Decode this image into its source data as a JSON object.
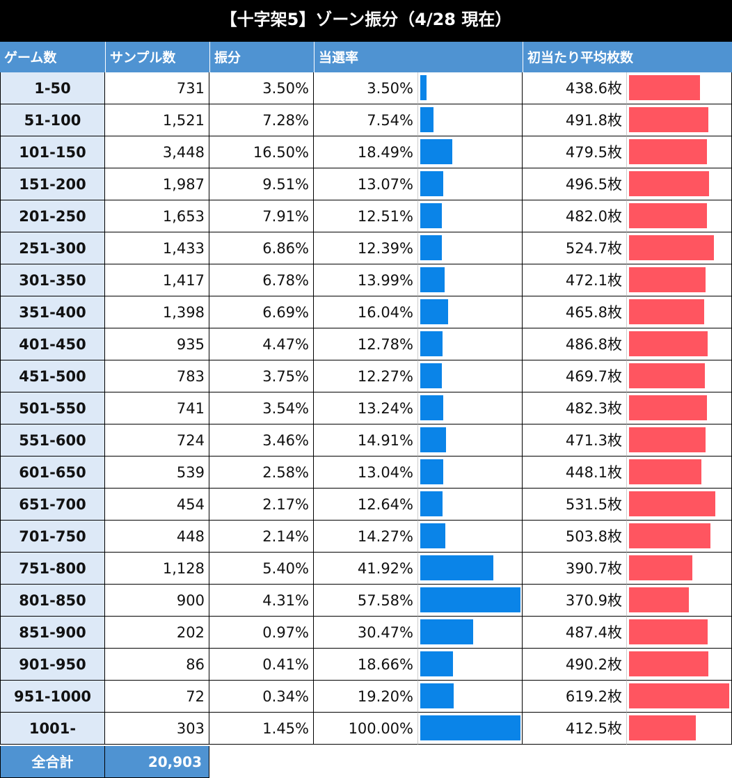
{
  "title": "【十字架5】ゾーン振分（4/28 現在）",
  "colors": {
    "header_bg": "#4f93d2",
    "zone_bg": "#dde9f7",
    "rate_bar": "#0a84e8",
    "medal_bar": "#ff5560"
  },
  "headers": {
    "zone": "ゲーム数",
    "samples": "サンプル数",
    "distribution": "振分",
    "hit_rate": "当選率",
    "avg_medals": "初当たり平均枚数"
  },
  "chart_data": {
    "type": "table",
    "rows": [
      {
        "zone": "1-50",
        "samples": "731",
        "distribution": "3.50%",
        "hit_rate": "3.50%",
        "avg_medals": "438.6枚"
      },
      {
        "zone": "51-100",
        "samples": "1,521",
        "distribution": "7.28%",
        "hit_rate": "7.54%",
        "avg_medals": "491.8枚"
      },
      {
        "zone": "101-150",
        "samples": "3,448",
        "distribution": "16.50%",
        "hit_rate": "18.49%",
        "avg_medals": "479.5枚"
      },
      {
        "zone": "151-200",
        "samples": "1,987",
        "distribution": "9.51%",
        "hit_rate": "13.07%",
        "avg_medals": "496.5枚"
      },
      {
        "zone": "201-250",
        "samples": "1,653",
        "distribution": "7.91%",
        "hit_rate": "12.51%",
        "avg_medals": "482.0枚"
      },
      {
        "zone": "251-300",
        "samples": "1,433",
        "distribution": "6.86%",
        "hit_rate": "12.39%",
        "avg_medals": "524.7枚"
      },
      {
        "zone": "301-350",
        "samples": "1,417",
        "distribution": "6.78%",
        "hit_rate": "13.99%",
        "avg_medals": "472.1枚"
      },
      {
        "zone": "351-400",
        "samples": "1,398",
        "distribution": "6.69%",
        "hit_rate": "16.04%",
        "avg_medals": "465.8枚"
      },
      {
        "zone": "401-450",
        "samples": "935",
        "distribution": "4.47%",
        "hit_rate": "12.78%",
        "avg_medals": "486.8枚"
      },
      {
        "zone": "451-500",
        "samples": "783",
        "distribution": "3.75%",
        "hit_rate": "12.27%",
        "avg_medals": "469.7枚"
      },
      {
        "zone": "501-550",
        "samples": "741",
        "distribution": "3.54%",
        "hit_rate": "13.24%",
        "avg_medals": "482.3枚"
      },
      {
        "zone": "551-600",
        "samples": "724",
        "distribution": "3.46%",
        "hit_rate": "14.91%",
        "avg_medals": "471.3枚"
      },
      {
        "zone": "601-650",
        "samples": "539",
        "distribution": "2.58%",
        "hit_rate": "13.04%",
        "avg_medals": "448.1枚"
      },
      {
        "zone": "651-700",
        "samples": "454",
        "distribution": "2.17%",
        "hit_rate": "12.64%",
        "avg_medals": "531.5枚"
      },
      {
        "zone": "701-750",
        "samples": "448",
        "distribution": "2.14%",
        "hit_rate": "14.27%",
        "avg_medals": "503.8枚"
      },
      {
        "zone": "751-800",
        "samples": "1,128",
        "distribution": "5.40%",
        "hit_rate": "41.92%",
        "avg_medals": "390.7枚"
      },
      {
        "zone": "801-850",
        "samples": "900",
        "distribution": "4.31%",
        "hit_rate": "57.58%",
        "avg_medals": "370.9枚"
      },
      {
        "zone": "851-900",
        "samples": "202",
        "distribution": "0.97%",
        "hit_rate": "30.47%",
        "avg_medals": "487.4枚"
      },
      {
        "zone": "901-950",
        "samples": "86",
        "distribution": "0.41%",
        "hit_rate": "18.66%",
        "avg_medals": "490.2枚"
      },
      {
        "zone": "951-1000",
        "samples": "72",
        "distribution": "0.34%",
        "hit_rate": "19.20%",
        "avg_medals": "619.2枚"
      },
      {
        "zone": "1001-",
        "samples": "303",
        "distribution": "1.45%",
        "hit_rate": "100.00%",
        "avg_medals": "412.5枚"
      }
    ],
    "hit_rate_values": [
      3.5,
      7.54,
      18.49,
      13.07,
      12.51,
      12.39,
      13.99,
      16.04,
      12.78,
      12.27,
      13.24,
      14.91,
      13.04,
      12.64,
      14.27,
      41.92,
      57.58,
      30.47,
      18.66,
      19.2,
      100.0
    ],
    "hit_rate_bar_max": 57.58,
    "avg_medal_values": [
      438.6,
      491.8,
      479.5,
      496.5,
      482.0,
      524.7,
      472.1,
      465.8,
      486.8,
      469.7,
      482.3,
      471.3,
      448.1,
      531.5,
      503.8,
      390.7,
      370.9,
      487.4,
      490.2,
      619.2,
      412.5
    ],
    "avg_medal_bar_max": 619.2
  },
  "total": {
    "label": "全合計",
    "value": "20,903"
  }
}
